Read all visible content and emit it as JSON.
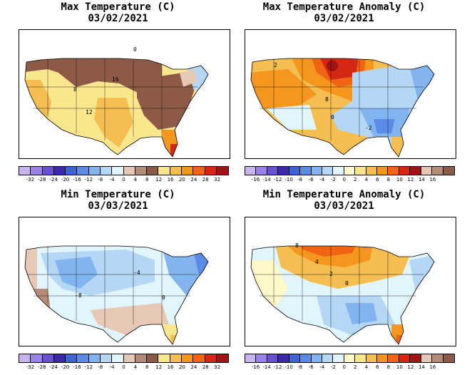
{
  "panels": [
    {
      "id": "max-temp",
      "title": "Max Temperature (C)",
      "date": "03/02/2021",
      "contour_labels": [
        "0",
        "8",
        "16",
        "12"
      ],
      "colorbar": {
        "ticks": [
          "-32",
          "-28",
          "-24",
          "-20",
          "-16",
          "-12",
          "-8",
          "-4",
          "0",
          "4",
          "8",
          "12",
          "16",
          "20",
          "24",
          "28",
          "32"
        ]
      }
    },
    {
      "id": "max-anom",
      "title": "Max Temperature Anomaly (C)",
      "date": "03/02/2021",
      "contour_labels": [
        "2",
        "0",
        "8",
        "-2"
      ],
      "colorbar": {
        "ticks": [
          "-16",
          "-14",
          "-12",
          "-10",
          "-8",
          "-6",
          "-4",
          "-2",
          "0",
          "2",
          "4",
          "6",
          "8",
          "10",
          "12",
          "14",
          "16"
        ]
      }
    },
    {
      "id": "min-temp",
      "title": "Min Temperature (C)",
      "date": "03/03/2021",
      "contour_labels": [
        "-8",
        "0",
        "-4"
      ],
      "colorbar": {
        "ticks": [
          "-32",
          "-28",
          "-24",
          "-20",
          "-16",
          "-12",
          "-8",
          "-4",
          "0",
          "4",
          "8",
          "12",
          "16",
          "20",
          "24",
          "28",
          "32"
        ]
      }
    },
    {
      "id": "min-anom",
      "title": "Min Temperature Anomaly (C)",
      "date": "03/03/2021",
      "contour_labels": [
        "8",
        "4",
        "2",
        "0"
      ],
      "colorbar": {
        "ticks": [
          "-16",
          "-14",
          "-12",
          "-10",
          "-8",
          "-6",
          "-4",
          "-2",
          "0",
          "2",
          "4",
          "6",
          "8",
          "10",
          "12",
          "14",
          "16"
        ]
      }
    }
  ],
  "colors": {
    "temp": [
      "#c8b4f0",
      "#9b82e6",
      "#6a50d2",
      "#3c28aa",
      "#3c64d2",
      "#5a8ce6",
      "#82b4f0",
      "#b4d7f5",
      "#e1f5fc",
      "#e6c8b4",
      "#b48c78",
      "#8c5a46",
      "#fae68c",
      "#f5be50",
      "#f5961e",
      "#f06414",
      "#d22814",
      "#a01414"
    ],
    "anom": [
      "#c8b4f0",
      "#9b82e6",
      "#6a50d2",
      "#3c28aa",
      "#3c64d2",
      "#5a8ce6",
      "#82b4f0",
      "#b4d7f5",
      "#e1f5fc",
      "#fff8c8",
      "#fae68c",
      "#f5be50",
      "#f5961e",
      "#f06414",
      "#d22814",
      "#a01414",
      "#e6c8b4",
      "#b48c78",
      "#8c5a46"
    ]
  }
}
